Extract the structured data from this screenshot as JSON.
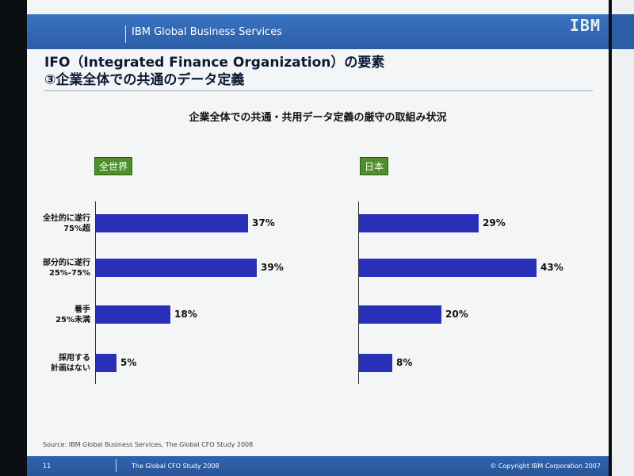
{
  "header": {
    "service": "IBM Global Business Services",
    "logo": "IBM"
  },
  "title": {
    "line1": "IFO（Integrated Finance Organization）の要素",
    "line2": "③企業全体での共通のデータ定義"
  },
  "footer": {
    "source": "Source: IBM Global Business Services, The Global CFO Study 2008",
    "page": "11",
    "study": "The Global CFO Study 2008",
    "copyright": "© Copyright IBM Corporation 2007"
  },
  "colors": {
    "bar": "#2a2fb8",
    "badge": "#4e8f2c"
  },
  "chart_data": [
    {
      "type": "bar",
      "orientation": "horizontal",
      "title": "企業全体での共通・共用データ定義の厳守の取組み状況",
      "panel_label": "全世界",
      "categories": [
        [
          "全社的に遂行",
          "75%超"
        ],
        [
          "部分的に遂行",
          "25%-75%"
        ],
        [
          "着手",
          "25%未満"
        ],
        [
          "採用する",
          "計画はない"
        ]
      ],
      "values": [
        37,
        39,
        18,
        5
      ],
      "value_labels": [
        "37%",
        "39%",
        "18%",
        "5%"
      ],
      "xlim": [
        0,
        50
      ]
    },
    {
      "type": "bar",
      "orientation": "horizontal",
      "panel_label": "日本",
      "categories": [
        [
          "全社的に遂行",
          "75%超"
        ],
        [
          "部分的に遂行",
          "25%-75%"
        ],
        [
          "着手",
          "25%未満"
        ],
        [
          "採用する",
          "計画はない"
        ]
      ],
      "values": [
        29,
        43,
        20,
        8
      ],
      "value_labels": [
        "29%",
        "43%",
        "20%",
        "8%"
      ],
      "xlim": [
        0,
        50
      ]
    }
  ]
}
